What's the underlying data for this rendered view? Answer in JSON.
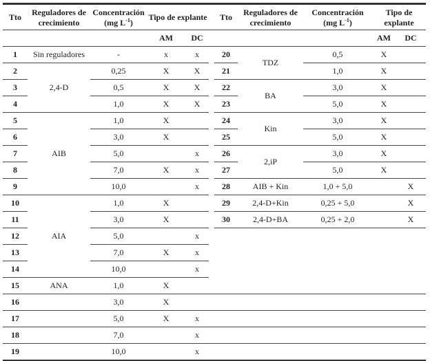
{
  "header": {
    "tto": "Tto",
    "reg_line1": "Reguladores de",
    "reg_line2": "crecimiento",
    "conc_line1": "Concentración",
    "conc_pre": "(mg L",
    "conc_sup": "-1",
    "conc_post": ")",
    "explant_left": "Tipo de explante",
    "explant_right_line1": "Tipo de",
    "explant_right_line2": "explante",
    "am": "AM",
    "dc": "DC"
  },
  "body_rows": [
    [
      {
        "t": "1",
        "k": "tto",
        "bb": 1
      },
      {
        "t": "Sin reguladores",
        "k": "reg",
        "bb": 1
      },
      {
        "t": "-",
        "k": "conc",
        "bb": 1
      },
      {
        "t": "x",
        "k": "am",
        "bb": 1
      },
      {
        "t": "x",
        "k": "dc",
        "bb": 1
      },
      {
        "t": "",
        "k": "gap"
      },
      {
        "t": "20",
        "k": "tto",
        "bb": 1
      },
      {
        "t": "TDZ",
        "k": "reg",
        "r": 2,
        "bb": 1
      },
      {
        "t": "0,5",
        "k": "conc",
        "bb": 1
      },
      {
        "t": "X",
        "k": "am",
        "bb": 1
      },
      {
        "t": "",
        "k": "dc",
        "bb": 1
      }
    ],
    [
      {
        "t": "2",
        "k": "tto",
        "bb": 1
      },
      {
        "t": "2,4-D",
        "k": "reg",
        "r": 3,
        "bb": 1
      },
      {
        "t": "0,25",
        "k": "conc",
        "bb": 1
      },
      {
        "t": "X",
        "k": "am",
        "bb": 1
      },
      {
        "t": "X",
        "k": "dc",
        "bb": 1
      },
      {
        "t": "",
        "k": "gap"
      },
      {
        "t": "21",
        "k": "tto",
        "bb": 1
      },
      {
        "t": "1,0",
        "k": "conc",
        "bb": 1
      },
      {
        "t": "X",
        "k": "am",
        "bb": 1
      },
      {
        "t": "",
        "k": "dc",
        "bb": 1
      }
    ],
    [
      {
        "t": "3",
        "k": "tto",
        "bb": 1
      },
      {
        "t": "0,5",
        "k": "conc",
        "bb": 1
      },
      {
        "t": "X",
        "k": "am",
        "bb": 1
      },
      {
        "t": "X",
        "k": "dc",
        "bb": 1
      },
      {
        "t": "",
        "k": "gap"
      },
      {
        "t": "22",
        "k": "tto",
        "bb": 1
      },
      {
        "t": "BA",
        "k": "reg",
        "r": 2,
        "bb": 1
      },
      {
        "t": "3,0",
        "k": "conc",
        "bb": 1
      },
      {
        "t": "X",
        "k": "am",
        "bb": 1
      },
      {
        "t": "",
        "k": "dc",
        "bb": 1
      }
    ],
    [
      {
        "t": "4",
        "k": "tto",
        "bb": 1
      },
      {
        "t": "1,0",
        "k": "conc",
        "bb": 1
      },
      {
        "t": "X",
        "k": "am",
        "bb": 1
      },
      {
        "t": "X",
        "k": "dc",
        "bb": 1
      },
      {
        "t": "",
        "k": "gap"
      },
      {
        "t": "23",
        "k": "tto",
        "bb": 1
      },
      {
        "t": "5,0",
        "k": "conc",
        "bb": 1
      },
      {
        "t": "X",
        "k": "am",
        "bb": 1
      },
      {
        "t": "",
        "k": "dc",
        "bb": 1
      }
    ],
    [
      {
        "t": "5",
        "k": "tto",
        "bb": 1
      },
      {
        "t": "AIB",
        "k": "reg",
        "r": 5,
        "bb": 1
      },
      {
        "t": "1,0",
        "k": "conc",
        "bb": 1
      },
      {
        "t": "X",
        "k": "am",
        "bb": 1
      },
      {
        "t": "",
        "k": "dc",
        "bb": 1
      },
      {
        "t": "",
        "k": "gap"
      },
      {
        "t": "24",
        "k": "tto",
        "bb": 1
      },
      {
        "t": "Kin",
        "k": "reg",
        "r": 2,
        "bb": 1
      },
      {
        "t": "3,0",
        "k": "conc",
        "bb": 1
      },
      {
        "t": "X",
        "k": "am",
        "bb": 1
      },
      {
        "t": "",
        "k": "dc",
        "bb": 1
      }
    ],
    [
      {
        "t": "6",
        "k": "tto",
        "bb": 1
      },
      {
        "t": "3,0",
        "k": "conc",
        "bb": 1
      },
      {
        "t": "X",
        "k": "am",
        "bb": 1
      },
      {
        "t": "",
        "k": "dc",
        "bb": 1
      },
      {
        "t": "",
        "k": "gap"
      },
      {
        "t": "25",
        "k": "tto",
        "bb": 1
      },
      {
        "t": "5,0",
        "k": "conc",
        "bb": 1
      },
      {
        "t": "X",
        "k": "am",
        "bb": 1
      },
      {
        "t": "",
        "k": "dc",
        "bb": 1
      }
    ],
    [
      {
        "t": "7",
        "k": "tto",
        "bb": 1
      },
      {
        "t": "5,0",
        "k": "conc",
        "bb": 1
      },
      {
        "t": "",
        "k": "am",
        "bb": 1
      },
      {
        "t": "x",
        "k": "dc",
        "bb": 1
      },
      {
        "t": "",
        "k": "gap"
      },
      {
        "t": "26",
        "k": "tto",
        "bb": 1
      },
      {
        "t": "2,iP",
        "k": "reg",
        "r": 2,
        "bb": 1
      },
      {
        "t": "3,0",
        "k": "conc",
        "bb": 1
      },
      {
        "t": "X",
        "k": "am",
        "bb": 1
      },
      {
        "t": "",
        "k": "dc",
        "bb": 1
      }
    ],
    [
      {
        "t": "8",
        "k": "tto",
        "bb": 1
      },
      {
        "t": "7,0",
        "k": "conc",
        "bb": 1
      },
      {
        "t": "X",
        "k": "am",
        "bb": 1
      },
      {
        "t": "x",
        "k": "dc",
        "bb": 1
      },
      {
        "t": "",
        "k": "gap"
      },
      {
        "t": "27",
        "k": "tto",
        "bb": 1
      },
      {
        "t": "5,0",
        "k": "conc",
        "bb": 1
      },
      {
        "t": "X",
        "k": "am",
        "bb": 1
      },
      {
        "t": "",
        "k": "dc",
        "bb": 1
      }
    ],
    [
      {
        "t": "9",
        "k": "tto",
        "bb": 1
      },
      {
        "t": "10,0",
        "k": "conc",
        "bb": 1
      },
      {
        "t": "",
        "k": "am",
        "bb": 1
      },
      {
        "t": "x",
        "k": "dc",
        "bb": 1
      },
      {
        "t": "",
        "k": "gap"
      },
      {
        "t": "28",
        "k": "tto",
        "bb": 1
      },
      {
        "t": "AIB + Kin",
        "k": "reg",
        "bb": 1
      },
      {
        "t": "1,0 + 5,0",
        "k": "conc",
        "bb": 1
      },
      {
        "t": "",
        "k": "am",
        "bb": 1
      },
      {
        "t": "X",
        "k": "dc",
        "bb": 1
      }
    ],
    [
      {
        "t": "10",
        "k": "tto",
        "bb": 1
      },
      {
        "t": "AIA",
        "k": "reg",
        "r": 5,
        "bb": 1
      },
      {
        "t": "1,0",
        "k": "conc",
        "bb": 1
      },
      {
        "t": "X",
        "k": "am",
        "bb": 1
      },
      {
        "t": "",
        "k": "dc",
        "bb": 1
      },
      {
        "t": "",
        "k": "gap"
      },
      {
        "t": "29",
        "k": "tto",
        "bb": 1
      },
      {
        "t": "2,4-D+Kin",
        "k": "reg",
        "bb": 1
      },
      {
        "t": "0,25 + 5,0",
        "k": "conc",
        "bb": 1
      },
      {
        "t": "",
        "k": "am",
        "bb": 1
      },
      {
        "t": "X",
        "k": "dc",
        "bb": 1
      }
    ],
    [
      {
        "t": "11",
        "k": "tto",
        "bb": 1
      },
      {
        "t": "3,0",
        "k": "conc",
        "bb": 1
      },
      {
        "t": "X",
        "k": "am",
        "bb": 1
      },
      {
        "t": "",
        "k": "dc",
        "bb": 1
      },
      {
        "t": "",
        "k": "gap"
      },
      {
        "t": "30",
        "k": "tto",
        "bb": 1
      },
      {
        "t": "2,4-D+BA",
        "k": "reg",
        "bb": 1
      },
      {
        "t": "0,25 + 2,0",
        "k": "conc",
        "bb": 1
      },
      {
        "t": "",
        "k": "am",
        "bb": 1
      },
      {
        "t": "X",
        "k": "dc",
        "bb": 1
      }
    ],
    [
      {
        "t": "12",
        "k": "tto",
        "bb": 1
      },
      {
        "t": "5,0",
        "k": "conc",
        "bb": 1
      },
      {
        "t": "",
        "k": "am",
        "bb": 1
      },
      {
        "t": "x",
        "k": "dc",
        "bb": 1
      },
      {
        "t": "",
        "k": "gap"
      },
      {
        "t": "",
        "k": "tto"
      },
      {
        "t": "",
        "k": "reg"
      },
      {
        "t": "",
        "k": "conc"
      },
      {
        "t": "",
        "k": "am"
      },
      {
        "t": "",
        "k": "dc"
      }
    ],
    [
      {
        "t": "13",
        "k": "tto",
        "bb": 1
      },
      {
        "t": "7,0",
        "k": "conc",
        "bb": 1
      },
      {
        "t": "X",
        "k": "am",
        "bb": 1
      },
      {
        "t": "x",
        "k": "dc",
        "bb": 1
      },
      {
        "t": "",
        "k": "gap"
      },
      {
        "t": "",
        "k": "tto"
      },
      {
        "t": "",
        "k": "reg"
      },
      {
        "t": "",
        "k": "conc"
      },
      {
        "t": "",
        "k": "am"
      },
      {
        "t": "",
        "k": "dc"
      }
    ],
    [
      {
        "t": "14",
        "k": "tto",
        "bb": 1
      },
      {
        "t": "10,0",
        "k": "conc",
        "bb": 1
      },
      {
        "t": "",
        "k": "am",
        "bb": 1
      },
      {
        "t": "x",
        "k": "dc",
        "bb": 1
      },
      {
        "t": "",
        "k": "gap"
      },
      {
        "t": "",
        "k": "tto"
      },
      {
        "t": "",
        "k": "reg"
      },
      {
        "t": "",
        "k": "conc"
      },
      {
        "t": "",
        "k": "am"
      },
      {
        "t": "",
        "k": "dc"
      }
    ],
    [
      {
        "t": "15",
        "k": "tto",
        "bb": 1
      },
      {
        "t": "ANA",
        "k": "reg",
        "bb": 1
      },
      {
        "t": "1,0",
        "k": "conc",
        "bb": 1
      },
      {
        "t": "X",
        "k": "am",
        "bb": 1
      },
      {
        "t": "",
        "k": "dc",
        "bb": 1
      },
      {
        "t": "",
        "k": "gap",
        "bb": 1
      },
      {
        "t": "",
        "k": "tto",
        "bb": 1
      },
      {
        "t": "",
        "k": "reg",
        "bb": 1
      },
      {
        "t": "",
        "k": "conc",
        "bb": 1
      },
      {
        "t": "",
        "k": "am",
        "bb": 1
      },
      {
        "t": "",
        "k": "dc",
        "bb": 1
      }
    ],
    [
      {
        "t": "16",
        "k": "tto",
        "bb": 1
      },
      {
        "t": "",
        "k": "reg",
        "bb": 1
      },
      {
        "t": "3,0",
        "k": "conc",
        "bb": 1
      },
      {
        "t": "X",
        "k": "am",
        "bb": 1
      },
      {
        "t": "",
        "k": "dc",
        "bb": 1
      },
      {
        "t": "",
        "k": "gap",
        "bb": 1
      },
      {
        "t": "",
        "k": "tto",
        "bb": 1
      },
      {
        "t": "",
        "k": "reg",
        "bb": 1
      },
      {
        "t": "",
        "k": "conc",
        "bb": 1
      },
      {
        "t": "",
        "k": "am",
        "bb": 1
      },
      {
        "t": "",
        "k": "dc",
        "bb": 1
      }
    ],
    [
      {
        "t": "17",
        "k": "tto",
        "bb": 1
      },
      {
        "t": "",
        "k": "reg",
        "bb": 1
      },
      {
        "t": "5,0",
        "k": "conc",
        "bb": 1
      },
      {
        "t": "X",
        "k": "am",
        "bb": 1
      },
      {
        "t": "x",
        "k": "dc",
        "bb": 1
      },
      {
        "t": "",
        "k": "gap",
        "bb": 1
      },
      {
        "t": "",
        "k": "tto",
        "bb": 1
      },
      {
        "t": "",
        "k": "reg",
        "bb": 1
      },
      {
        "t": "",
        "k": "conc",
        "bb": 1
      },
      {
        "t": "",
        "k": "am",
        "bb": 1
      },
      {
        "t": "",
        "k": "dc",
        "bb": 1
      }
    ],
    [
      {
        "t": "18",
        "k": "tto",
        "bb": 1
      },
      {
        "t": "",
        "k": "reg",
        "bb": 1
      },
      {
        "t": "7,0",
        "k": "conc",
        "bb": 1
      },
      {
        "t": "",
        "k": "am",
        "bb": 1
      },
      {
        "t": "x",
        "k": "dc",
        "bb": 1
      },
      {
        "t": "",
        "k": "gap",
        "bb": 1
      },
      {
        "t": "",
        "k": "tto",
        "bb": 1
      },
      {
        "t": "",
        "k": "reg",
        "bb": 1
      },
      {
        "t": "",
        "k": "conc",
        "bb": 1
      },
      {
        "t": "",
        "k": "am",
        "bb": 1
      },
      {
        "t": "",
        "k": "dc",
        "bb": 1
      }
    ],
    [
      {
        "t": "19",
        "k": "tto",
        "bb": 2
      },
      {
        "t": "",
        "k": "reg",
        "bb": 2
      },
      {
        "t": "10,0",
        "k": "conc",
        "bb": 2
      },
      {
        "t": "",
        "k": "am",
        "bb": 2
      },
      {
        "t": "x",
        "k": "dc",
        "bb": 2
      },
      {
        "t": "",
        "k": "gap",
        "bb": 2
      },
      {
        "t": "",
        "k": "tto",
        "bb": 2
      },
      {
        "t": "",
        "k": "reg",
        "bb": 2
      },
      {
        "t": "",
        "k": "conc",
        "bb": 2
      },
      {
        "t": "",
        "k": "am",
        "bb": 2
      },
      {
        "t": "",
        "k": "dc",
        "bb": 2
      }
    ]
  ]
}
